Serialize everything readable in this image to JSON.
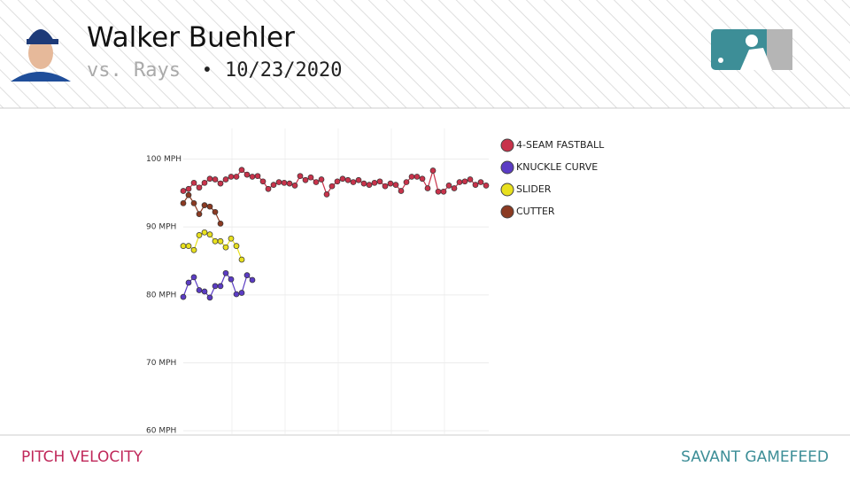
{
  "header": {
    "player": "Walker Buehler",
    "opponent": "vs. Rays",
    "separator": "•",
    "date": "10/23/2020"
  },
  "footer": {
    "left": "PITCH VELOCITY",
    "right": "SAVANT GAMEFEED"
  },
  "chart_data": {
    "type": "line",
    "xlim": [
      0,
      57.5
    ],
    "ylim": [
      59.5,
      104.5
    ],
    "yticks": [
      {
        "value": 60,
        "label": "60 MPH"
      },
      {
        "value": 70,
        "label": "70 MPH"
      },
      {
        "value": 80,
        "label": "80 MPH"
      },
      {
        "value": 90,
        "label": "90 MPH"
      },
      {
        "value": 100,
        "label": "100 MPH"
      }
    ],
    "grid": true,
    "series": [
      {
        "name": "4-SEAM FASTBALL",
        "color": "#c8334b",
        "x": [
          0,
          1,
          2,
          3,
          4,
          5,
          6,
          7,
          8,
          9,
          10,
          11,
          12,
          13,
          14,
          15,
          16,
          17,
          18,
          19,
          20,
          21,
          22,
          23,
          24,
          25,
          26,
          27,
          28,
          29,
          30,
          31,
          32,
          33,
          34,
          35,
          36,
          37,
          38,
          39,
          40,
          41,
          42,
          43,
          44,
          45,
          46,
          47,
          48,
          49,
          50,
          51,
          52,
          53,
          54,
          55,
          56,
          57
        ],
        "values": [
          95.3,
          95.6,
          96.5,
          95.8,
          96.5,
          97.1,
          97.0,
          96.4,
          97.0,
          97.4,
          97.4,
          98.4,
          97.7,
          97.4,
          97.5,
          96.7,
          95.6,
          96.2,
          96.6,
          96.5,
          96.4,
          96.1,
          97.5,
          96.9,
          97.3,
          96.6,
          97.0,
          94.8,
          96.0,
          96.7,
          97.1,
          96.9,
          96.6,
          96.9,
          96.4,
          96.2,
          96.5,
          96.7,
          96.0,
          96.4,
          96.2,
          95.3,
          96.6,
          97.4,
          97.4,
          97.1,
          95.7,
          98.3,
          95.2,
          95.2,
          96.1,
          95.7,
          96.6,
          96.7,
          97.0,
          96.2,
          96.6,
          96.1
        ]
      },
      {
        "name": "KNUCKLE CURVE",
        "color": "#5b3cc4",
        "x": [
          0,
          1,
          2,
          3,
          4,
          5,
          6,
          7,
          8,
          9,
          10,
          11,
          12,
          13
        ],
        "values": [
          79.7,
          81.8,
          82.6,
          80.7,
          80.5,
          79.6,
          81.3,
          81.3,
          83.2,
          82.3,
          80.1,
          80.3,
          82.9,
          82.2
        ]
      },
      {
        "name": "SLIDER",
        "color": "#e8e01e",
        "x": [
          0,
          1,
          2,
          3,
          4,
          5,
          6,
          7,
          8,
          9,
          10,
          11
        ],
        "values": [
          87.2,
          87.2,
          86.6,
          88.8,
          89.2,
          88.9,
          87.9,
          87.9,
          87.0,
          88.3,
          87.2,
          85.2
        ]
      },
      {
        "name": "CUTTER",
        "color": "#8b3a22",
        "x": [
          0,
          1,
          2,
          3,
          4,
          5,
          6,
          7
        ],
        "values": [
          93.5,
          94.7,
          93.5,
          91.9,
          93.2,
          93.0,
          92.2,
          90.5
        ]
      }
    ]
  }
}
